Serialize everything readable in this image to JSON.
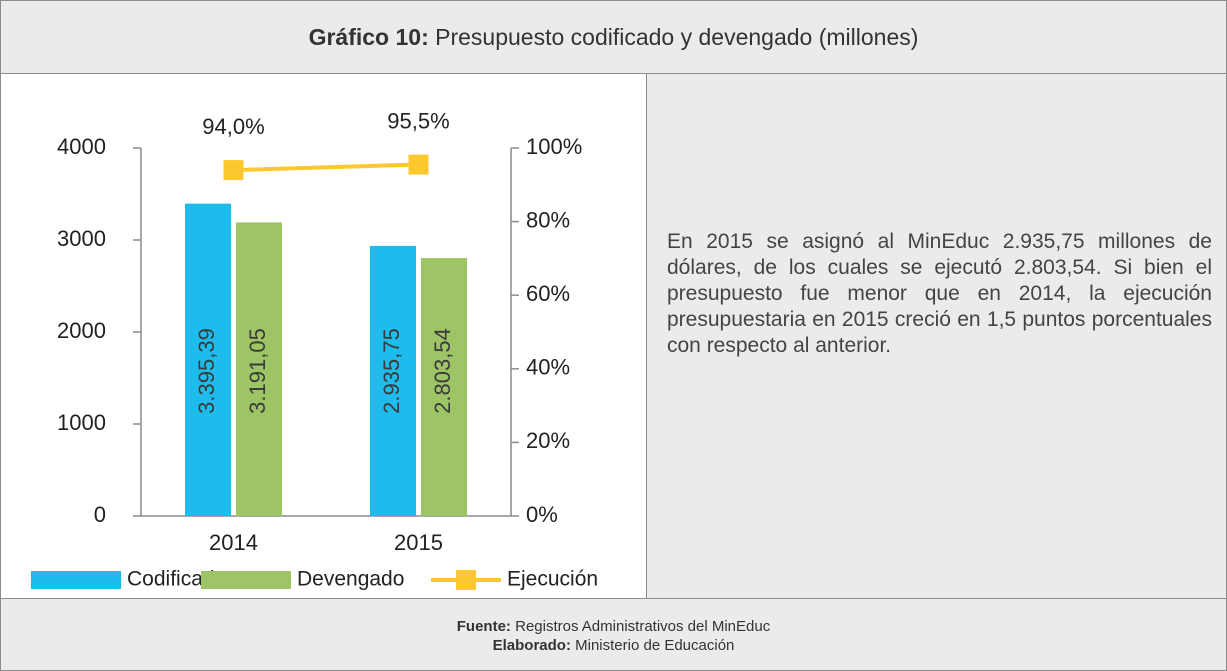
{
  "chart_data": {
    "type": "bar",
    "title_prefix": "Gráfico 10:",
    "title": "Presupuesto codificado y devengado (millones)",
    "categories": [
      "2014",
      "2015"
    ],
    "series": [
      {
        "name": "Codificado",
        "color": "#1ebbed",
        "values": [
          3395.39,
          2935.75
        ],
        "value_labels": [
          "3.395,39",
          "2.935,75"
        ]
      },
      {
        "name": "Devengado",
        "color": "#9ec565",
        "values": [
          3191.05,
          2803.54
        ],
        "value_labels": [
          "3.191,05",
          "2.803,54"
        ]
      },
      {
        "name": "Ejecución",
        "type": "line",
        "axis": "y2",
        "color": "#fdc82f",
        "values": [
          94.0,
          95.5
        ],
        "value_labels": [
          "94,0%",
          "95,5%"
        ]
      }
    ],
    "ylim": [
      0,
      4000
    ],
    "yticks": [
      0,
      1000,
      2000,
      3000,
      4000
    ],
    "y2lim": [
      0,
      100
    ],
    "y2ticks": [
      {
        "value": 0,
        "label": "0%"
      },
      {
        "value": 20,
        "label": "20%"
      },
      {
        "value": 40,
        "label": "40%"
      },
      {
        "value": 60,
        "label": "60%"
      },
      {
        "value": 80,
        "label": "80%"
      },
      {
        "value": 100,
        "label": "100%"
      }
    ]
  },
  "text": "En 2015 se asignó al MinEduc 2.935,75 millones de dólares, de los cuales se ejecutó 2.803,54. Si bien el presupuesto fue menor que en 2014, la ejecución presupuestaria en 2015 creció en 1,5 puntos porcentuales con respecto al anterior.",
  "footer": {
    "source_label": "Fuente:",
    "source": "Registros Administrativos del MinEduc",
    "author_label": "Elaborado:",
    "author": "Ministerio de Educación"
  }
}
